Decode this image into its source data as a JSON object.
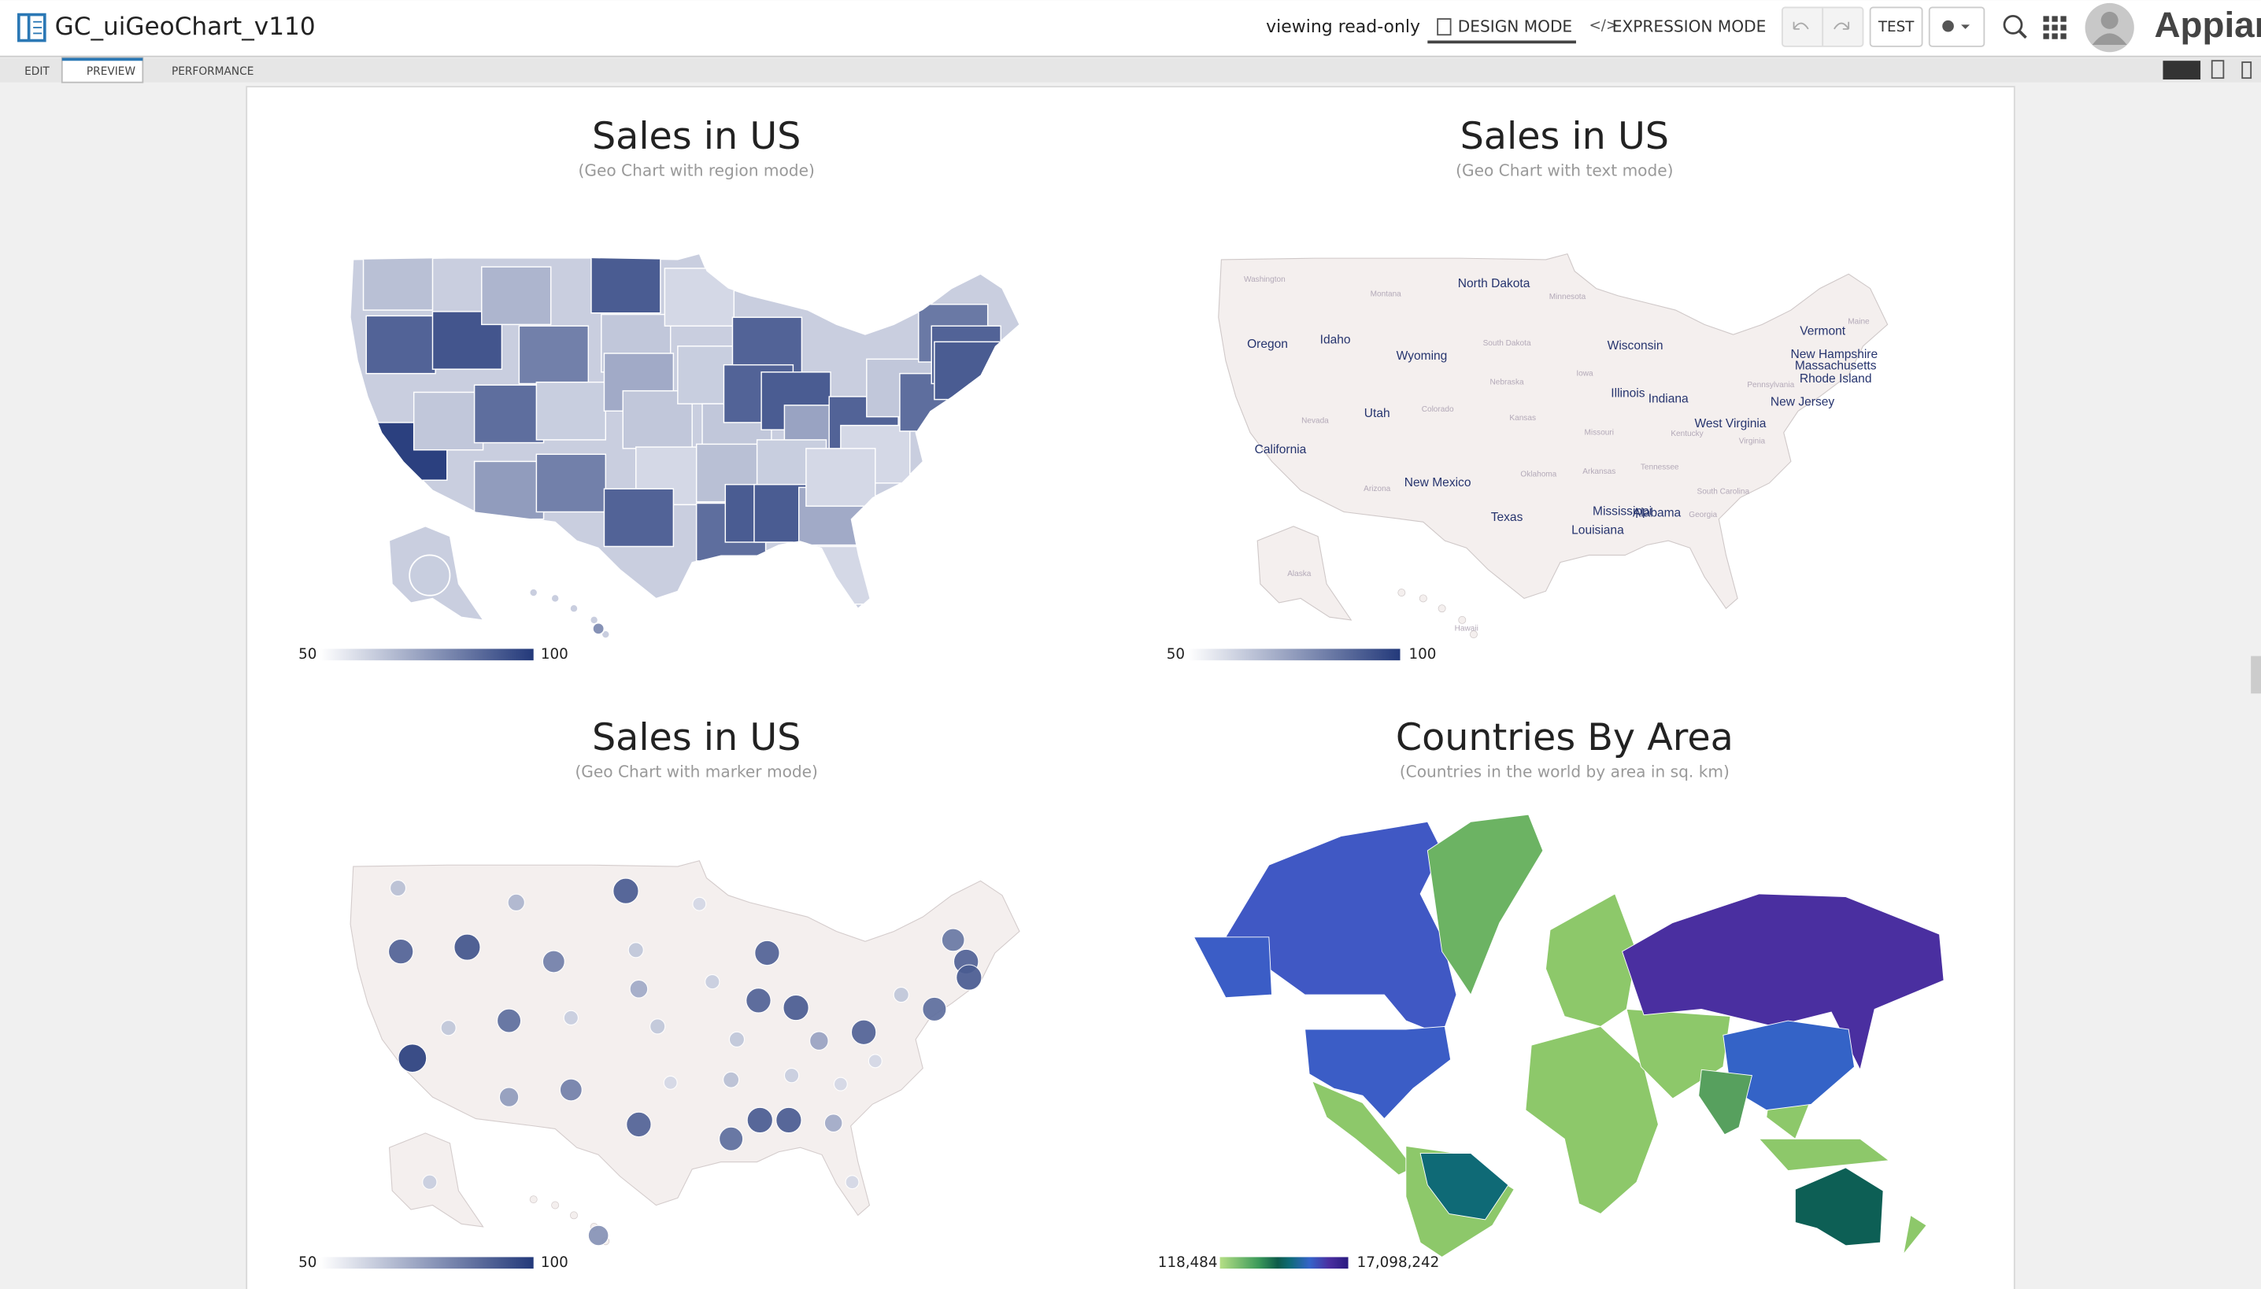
{
  "header": {
    "title": "GC_uiGeoChart_v110",
    "status": "viewing read-only",
    "modes": [
      "DESIGN MODE",
      "EXPRESSION MODE"
    ],
    "test_button": "TEST",
    "logo": "Appian"
  },
  "tabs": [
    "EDIT",
    "PREVIEW",
    "PERFORMANCE"
  ],
  "charts": [
    {
      "type": "region",
      "title": "Sales in US",
      "subtitle": "(Geo Chart with region mode)",
      "legend": {
        "min": 50,
        "max": 100
      },
      "values": [
        62,
        88,
        98,
        60,
        92,
        65,
        80,
        85,
        72,
        58,
        80,
        90,
        60,
        68,
        60,
        55,
        88,
        55,
        58,
        60,
        62,
        85,
        88,
        88,
        90,
        90,
        70,
        58,
        90,
        68,
        55,
        88,
        60,
        55,
        55,
        85,
        82,
        88,
        90,
        58,
        75
      ]
    },
    {
      "type": "text",
      "title": "Sales in US",
      "subtitle": "(Geo Chart with text mode)",
      "legend": {
        "min": 50,
        "max": 100
      },
      "labels": [
        "Washington",
        "Montana",
        "North Dakota",
        "Minnesota",
        "Oregon",
        "Idaho",
        "South Dakota",
        "Wisconsin",
        "Vermont",
        "Maine",
        "New Hampshire",
        "Massachusetts",
        "Rhode Island",
        "Wyoming",
        "Nebraska",
        "Iowa",
        "Illinois",
        "Indiana",
        "Pennsylvania",
        "New Jersey",
        "Nevada",
        "Utah",
        "Colorado",
        "Kansas",
        "Missouri",
        "West Virginia",
        "Kentucky",
        "Virginia",
        "California",
        "Tennessee",
        "Oklahoma",
        "Arkansas",
        "Arizona",
        "New Mexico",
        "South Carolina",
        "Texas",
        "Mississippi",
        "Alabama",
        "Georgia",
        "Louisiana",
        "Alaska",
        "Hawaii"
      ]
    },
    {
      "type": "marker",
      "title": "Sales in US",
      "subtitle": "(Geo Chart with marker mode)",
      "legend": {
        "min": 50,
        "max": 100
      },
      "values": [
        62,
        88,
        98,
        60,
        92,
        65,
        80,
        85,
        72,
        58,
        80,
        90,
        60,
        68,
        60,
        55,
        88,
        55,
        58,
        60,
        62,
        85,
        88,
        88,
        90,
        90,
        70,
        58,
        90,
        68,
        55,
        88,
        60,
        55,
        55,
        85,
        82,
        88,
        90,
        58,
        75
      ]
    },
    {
      "type": "world",
      "title": "Countries By Area",
      "subtitle": "(Countries in the world by area in sq. km)",
      "legend": {
        "min": {
          "value": 118484,
          "label": "118,484"
        },
        "max": {
          "value": 17098242,
          "label": "17,098,242"
        }
      },
      "values": [
        17098242,
        9984670,
        9833520,
        9596961,
        8515767,
        7692024,
        3287263,
        2166086
      ]
    }
  ]
}
